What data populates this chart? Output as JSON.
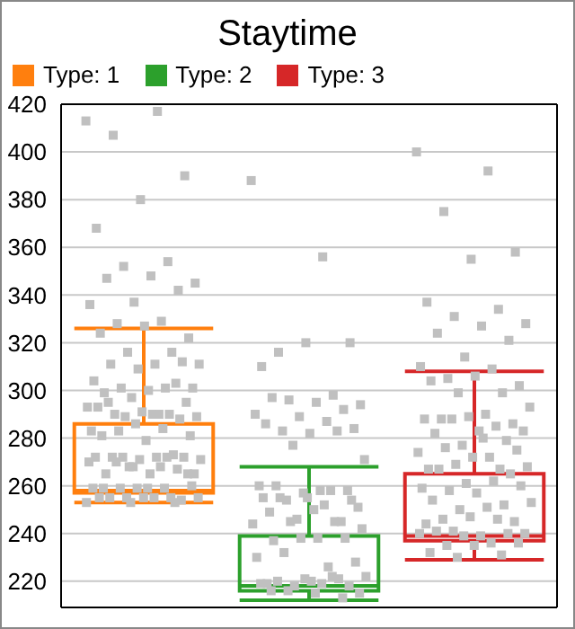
{
  "chart_data": {
    "type": "box",
    "title": "Staytime",
    "categories": [
      null,
      null,
      null
    ],
    "ylim": [
      209,
      420
    ],
    "yticks": [
      220,
      240,
      260,
      280,
      300,
      320,
      340,
      360,
      380,
      400,
      420
    ],
    "tick_labels": "y",
    "grid": true,
    "legend": "top left",
    "marker": "square",
    "series": [
      {
        "name": "Type: 1",
        "color": "#ff7f0e",
        "boxes": [
          {
            "low": 253,
            "q1": 257,
            "median": 258,
            "q3": 286,
            "high": 326,
            "outliers": [
              413,
              417,
              407,
              390,
              380,
              368,
              354,
              352,
              345,
              348,
              347,
              342,
              337,
              336,
              329,
              328,
              322,
              327,
              324,
              316,
              316,
              311,
              311,
              311,
              312,
              309,
              304,
              301,
              301,
              301,
              300,
              299,
              303,
              297,
              293,
              290,
              290,
              295,
              291,
              293,
              290,
              289,
              289,
              290,
              295,
              288,
              286,
              283,
              284,
              283,
              281,
              279,
              281,
              273,
              268,
              271,
              272,
              272,
              272,
              271,
              272,
              272,
              272,
              265,
              265,
              265,
              267,
              268,
              270,
              268,
              270,
              265,
              255,
              255,
              255,
              255,
              255,
              255,
              255,
              254,
              259,
              259,
              259,
              259,
              260,
              259,
              259,
              253,
              253,
              253
            ]
          },
          null,
          null
        ]
      },
      {
        "name": "Type: 2",
        "color": "#2ca02c",
        "boxes": [
          null,
          {
            "low": 212,
            "q1": 216,
            "median": 218,
            "q3": 239,
            "high": 268,
            "outliers": [
              388,
              356,
              316,
              320,
              320,
              310,
              298,
              296,
              294,
              295,
              297,
              292,
              289,
              290,
              287,
              283,
              284,
              282,
              286,
              283,
              277,
              271,
              258,
              260,
              258,
              257,
              260,
              258,
              254,
              251,
              250,
              249,
              245,
              246,
              244,
              252,
              255,
              254,
              255,
              255,
              245,
              245,
              242,
              238,
              237,
              238,
              238,
              230,
              226,
              232,
              228,
              220,
              219,
              221,
              218,
              222,
              219,
              220,
              218,
              221,
              219,
              222,
              216,
              215,
              215,
              216,
              213
            ]
          },
          null
        ]
      },
      {
        "name": "Type: 3",
        "color": "#d62728",
        "boxes": [
          null,
          null,
          {
            "low": 229,
            "q1": 237,
            "median": 239,
            "q3": 265,
            "high": 308,
            "outliers": [
              400,
              392,
              375,
              358,
              355,
              337,
              334,
              331,
              328,
              327,
              324,
              321,
              314,
              310,
              309,
              305,
              302,
              306,
              304,
              299,
              299,
              293,
              290,
              288,
              286,
              289,
              288,
              285,
              288,
              283,
              283,
              282,
              279,
              277,
              274,
              272,
              276,
              275,
              272,
              267,
              267,
              269,
              268,
              280,
              267,
              265,
              261,
              259,
              262,
              258,
              260,
              257,
              254,
              252,
              250,
              253,
              251,
              246,
              245,
              247,
              244,
              246,
              241,
              240,
              239,
              241,
              240,
              239,
              240,
              236,
              235,
              236,
              235,
              232,
              231,
              230
            ]
          }
        ]
      }
    ]
  }
}
